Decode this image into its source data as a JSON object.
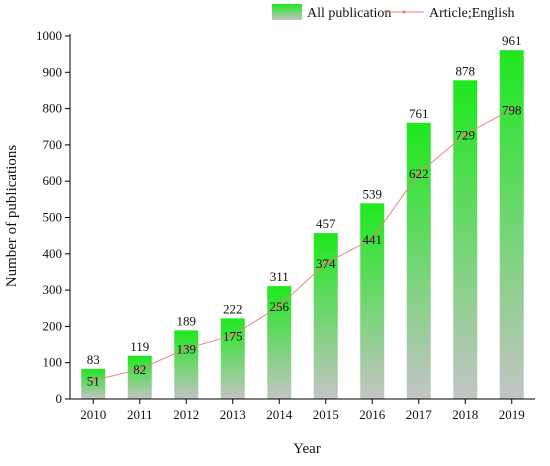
{
  "chart_data": {
    "type": "bar",
    "categories": [
      "2010",
      "2011",
      "2012",
      "2013",
      "2014",
      "2015",
      "2016",
      "2017",
      "2018",
      "2019"
    ],
    "series": [
      {
        "name": "All publication",
        "type": "bar",
        "values": [
          83,
          119,
          189,
          222,
          311,
          457,
          539,
          761,
          878,
          961
        ]
      },
      {
        "name": "Article;English",
        "type": "line",
        "values": [
          51,
          82,
          139,
          175,
          256,
          374,
          441,
          622,
          729,
          798
        ]
      }
    ],
    "xlabel": "Year",
    "ylabel": "Number of publications",
    "ylim": [
      0,
      1000
    ],
    "yticks": [
      0,
      100,
      200,
      300,
      400,
      500,
      600,
      700,
      800,
      900,
      1000
    ],
    "grid": false,
    "legend": "top",
    "colors": {
      "bar_top": "#1ee81e",
      "bar_bottom": "#c4c4c4",
      "line": "#f08080",
      "axis": "#000000"
    }
  }
}
